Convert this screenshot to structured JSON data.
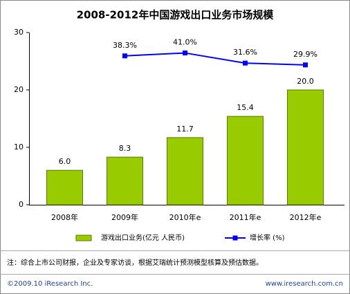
{
  "chart_data": {
    "type": "bar",
    "title": "2008-2012年中国游戏出口业务市场规模",
    "categories": [
      "2008年",
      "2009年",
      "2010年e",
      "2011年e",
      "2012年e"
    ],
    "series": [
      {
        "name": "游戏出口业务(亿元 人民币)",
        "color": "#99cc00",
        "values": [
          6.0,
          8.3,
          11.7,
          15.4,
          20.0
        ],
        "value_labels": [
          "6.0",
          "8.3",
          "11.7",
          "15.4",
          "20.0"
        ]
      },
      {
        "name": "增长率 (%)",
        "type": "line",
        "axis": "y2",
        "color": "#0000ff",
        "values": [
          null,
          38.3,
          41.0,
          31.6,
          29.9
        ],
        "value_labels": [
          null,
          "38.3%",
          "41.0%",
          "31.6%",
          "29.9%"
        ]
      }
    ],
    "ylim": [
      0,
      30
    ],
    "yticks": [
      0,
      10,
      20,
      30
    ],
    "y2lim": [
      -100,
      60
    ],
    "note": "注：综合上市公司财报，企业及专家访谈，根据艾瑞统计预测模型核算及预估数据。",
    "footer_left": "©2009.10 iResearch Inc.",
    "footer_right": "www.iresearch.com.cn"
  }
}
